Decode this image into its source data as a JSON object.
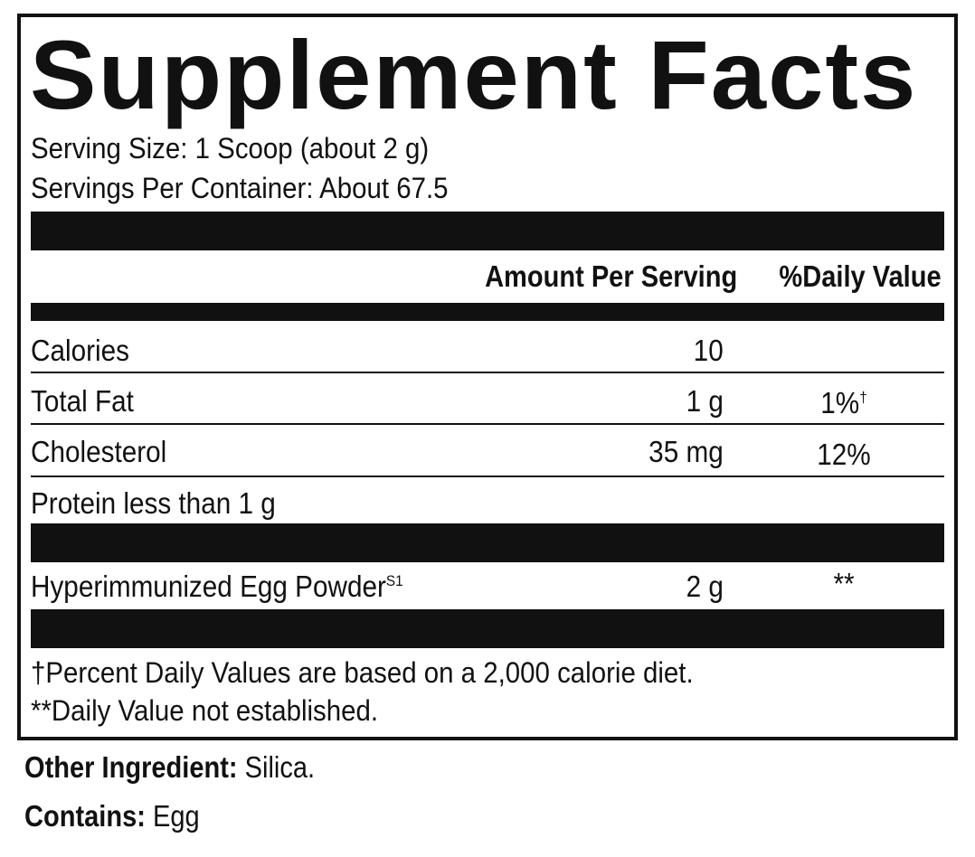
{
  "panel": {
    "title": "Supplement Facts",
    "serving_size": "Serving Size: 1 Scoop (about 2 g)",
    "servings_per_container": "Servings Per Container: About 67.5",
    "header": {
      "amount": "Amount Per Serving",
      "daily_value": "%Daily Value"
    },
    "rows": [
      {
        "name": "Calories",
        "amount": "10",
        "dv": "",
        "dv_mark": ""
      },
      {
        "name": "Total Fat",
        "amount": "1 g",
        "dv": "1%",
        "dv_mark": "†"
      },
      {
        "name": "Cholesterol",
        "amount": "35 mg",
        "dv": "12%",
        "dv_mark": ""
      },
      {
        "name": "Protein less than 1 g",
        "amount": "",
        "dv": "",
        "dv_mark": ""
      }
    ],
    "ingredient": {
      "name": "Hyperimmunized Egg Powder",
      "superscript": "S1",
      "amount": "2 g",
      "dv": "**"
    },
    "footnotes": [
      "†Percent Daily Values are based on a 2,000 calorie diet.",
      "**Daily Value not established."
    ]
  },
  "other_ingredient": {
    "label": "Other Ingredient:",
    "value": " Silica."
  },
  "contains": {
    "label": "Contains:",
    "value": " Egg"
  }
}
